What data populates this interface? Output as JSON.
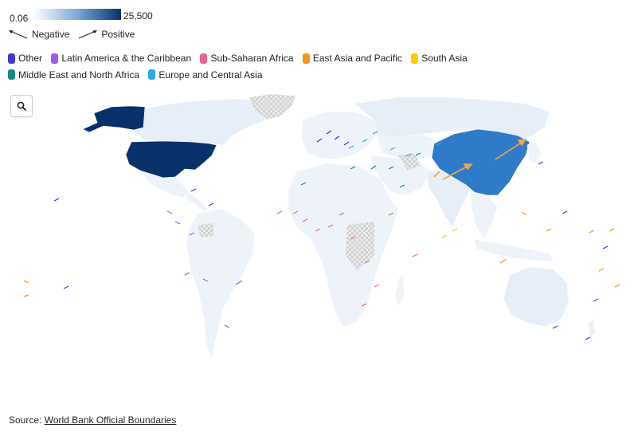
{
  "scale": {
    "min_label": "0.06",
    "max_label": "25,500"
  },
  "direction_legend": {
    "negative": "Negative",
    "positive": "Positive"
  },
  "legend": [
    {
      "label": "Other",
      "color": "#4338ca"
    },
    {
      "label": "Latin America & the Caribbean",
      "color": "#9b5de5"
    },
    {
      "label": "Sub-Saharan Africa",
      "color": "#f06292"
    },
    {
      "label": "East Asia and Pacific",
      "color": "#f7931e"
    },
    {
      "label": "South Asia",
      "color": "#ffcc00"
    },
    {
      "label": "Middle East and North Africa",
      "color": "#128a8a"
    },
    {
      "label": "Europe and Central Asia",
      "color": "#29abe2"
    }
  ],
  "map_colors": {
    "usa": "#08306b",
    "china": "#2f7bc9",
    "russia": "#e6eef8",
    "canada": "#e6eef8",
    "alaska": "#08306b",
    "light": "#eef3fa",
    "no_data": "#dcdcdc"
  },
  "zoom": {
    "icon": "search-icon"
  },
  "source": {
    "prefix": "Source: ",
    "link_text": "World Bank Official Boundaries"
  }
}
